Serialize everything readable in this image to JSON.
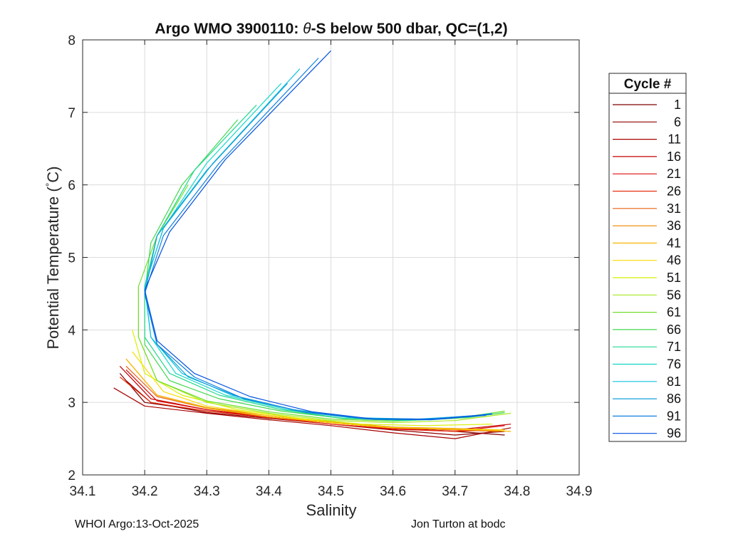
{
  "chart_data": {
    "type": "line",
    "title_prefix": "Argo WMO 3900110: ",
    "title_symbol": "θ",
    "title_suffix": "-S below 500 dbar,  QC=(1,2)",
    "xlabel": "Salinity",
    "ylabel_main": "Potential Temperature (",
    "ylabel_deg": "°",
    "ylabel_end": "C)",
    "xlim": [
      34.1,
      34.9
    ],
    "ylim": [
      2,
      8
    ],
    "xticks": [
      "34.1",
      "34.2",
      "34.3",
      "34.4",
      "34.5",
      "34.6",
      "34.7",
      "34.8",
      "34.9"
    ],
    "yticks": [
      "2",
      "3",
      "4",
      "5",
      "6",
      "7",
      "8"
    ],
    "grid": true,
    "legend": {
      "title": "Cycle #",
      "position": "right-outside",
      "entries": [
        {
          "label": "1",
          "color": "#800000"
        },
        {
          "label": "6",
          "color": "#8c0000"
        },
        {
          "label": "11",
          "color": "#a80000"
        },
        {
          "label": "16",
          "color": "#c40000"
        },
        {
          "label": "21",
          "color": "#dd0a0a"
        },
        {
          "label": "26",
          "color": "#e83010"
        },
        {
          "label": "31",
          "color": "#e86010"
        },
        {
          "label": "36",
          "color": "#f09010"
        },
        {
          "label": "41",
          "color": "#f8b800"
        },
        {
          "label": "46",
          "color": "#f8dc00"
        },
        {
          "label": "51",
          "color": "#d8f000"
        },
        {
          "label": "56",
          "color": "#a8e820"
        },
        {
          "label": "61",
          "color": "#70e030"
        },
        {
          "label": "66",
          "color": "#40d850"
        },
        {
          "label": "71",
          "color": "#20d890"
        },
        {
          "label": "76",
          "color": "#10d8c8"
        },
        {
          "label": "81",
          "color": "#10c0e0"
        },
        {
          "label": "86",
          "color": "#10a0d8"
        },
        {
          "label": "91",
          "color": "#1080e0"
        },
        {
          "label": "96",
          "color": "#0050e0"
        }
      ]
    },
    "series": [
      {
        "cycle": "1",
        "color": "#800000",
        "points": [
          [
            34.16,
            3.4
          ],
          [
            34.2,
            3.0
          ],
          [
            34.3,
            2.88
          ],
          [
            34.4,
            2.8
          ],
          [
            34.5,
            2.72
          ],
          [
            34.6,
            2.65
          ],
          [
            34.7,
            2.6
          ],
          [
            34.78,
            2.55
          ]
        ]
      },
      {
        "cycle": "6",
        "color": "#8c0000",
        "points": [
          [
            34.17,
            3.3
          ],
          [
            34.21,
            3.0
          ],
          [
            34.3,
            2.86
          ],
          [
            34.4,
            2.78
          ],
          [
            34.5,
            2.7
          ],
          [
            34.6,
            2.62
          ],
          [
            34.7,
            2.55
          ],
          [
            34.78,
            2.6
          ]
        ]
      },
      {
        "cycle": "11",
        "color": "#a80000",
        "points": [
          [
            34.15,
            3.2
          ],
          [
            34.2,
            2.95
          ],
          [
            34.3,
            2.85
          ],
          [
            34.4,
            2.76
          ],
          [
            34.5,
            2.68
          ],
          [
            34.6,
            2.58
          ],
          [
            34.7,
            2.5
          ],
          [
            34.79,
            2.65
          ]
        ]
      },
      {
        "cycle": "16",
        "color": "#c40000",
        "points": [
          [
            34.16,
            3.5
          ],
          [
            34.21,
            3.05
          ],
          [
            34.3,
            2.9
          ],
          [
            34.4,
            2.8
          ],
          [
            34.5,
            2.72
          ],
          [
            34.6,
            2.65
          ],
          [
            34.7,
            2.62
          ],
          [
            34.79,
            2.7
          ]
        ]
      },
      {
        "cycle": "21",
        "color": "#dd0a0a",
        "points": [
          [
            34.17,
            3.45
          ],
          [
            34.22,
            3.02
          ],
          [
            34.3,
            2.9
          ],
          [
            34.4,
            2.8
          ],
          [
            34.5,
            2.7
          ],
          [
            34.6,
            2.63
          ],
          [
            34.7,
            2.6
          ],
          [
            34.78,
            2.68
          ]
        ]
      },
      {
        "cycle": "26",
        "color": "#e83010",
        "points": [
          [
            34.16,
            3.35
          ],
          [
            34.21,
            3.0
          ],
          [
            34.3,
            2.88
          ],
          [
            34.4,
            2.79
          ],
          [
            34.5,
            2.7
          ],
          [
            34.6,
            2.64
          ],
          [
            34.7,
            2.6
          ],
          [
            34.77,
            2.62
          ]
        ]
      },
      {
        "cycle": "31",
        "color": "#e86010",
        "points": [
          [
            34.17,
            3.5
          ],
          [
            34.22,
            3.08
          ],
          [
            34.3,
            2.92
          ],
          [
            34.4,
            2.82
          ],
          [
            34.5,
            2.73
          ],
          [
            34.6,
            2.66
          ],
          [
            34.7,
            2.62
          ],
          [
            34.77,
            2.6
          ]
        ]
      },
      {
        "cycle": "36",
        "color": "#f09010",
        "points": [
          [
            34.17,
            3.6
          ],
          [
            34.22,
            3.1
          ],
          [
            34.3,
            2.93
          ],
          [
            34.4,
            2.82
          ],
          [
            34.5,
            2.73
          ],
          [
            34.6,
            2.66
          ],
          [
            34.7,
            2.64
          ],
          [
            34.78,
            2.62
          ]
        ]
      },
      {
        "cycle": "41",
        "color": "#f8b800",
        "points": [
          [
            34.17,
            3.6
          ],
          [
            34.22,
            3.1
          ],
          [
            34.3,
            2.92
          ],
          [
            34.4,
            2.8
          ],
          [
            34.5,
            2.72
          ],
          [
            34.6,
            2.65
          ],
          [
            34.7,
            2.63
          ],
          [
            34.79,
            2.6
          ]
        ]
      },
      {
        "cycle": "46",
        "color": "#f8dc00",
        "points": [
          [
            34.18,
            3.7
          ],
          [
            34.23,
            3.15
          ],
          [
            34.3,
            2.95
          ],
          [
            34.4,
            2.82
          ],
          [
            34.5,
            2.72
          ],
          [
            34.6,
            2.65
          ],
          [
            34.7,
            2.63
          ],
          [
            34.78,
            2.62
          ]
        ]
      },
      {
        "cycle": "51",
        "color": "#d8f000",
        "points": [
          [
            34.18,
            4.0
          ],
          [
            34.2,
            3.4
          ],
          [
            34.26,
            3.1
          ],
          [
            34.35,
            2.9
          ],
          [
            34.45,
            2.78
          ],
          [
            34.55,
            2.7
          ],
          [
            34.65,
            2.68
          ],
          [
            34.76,
            2.7
          ]
        ]
      },
      {
        "cycle": "56",
        "color": "#a8e820",
        "points": [
          [
            34.19,
            4.6
          ],
          [
            34.19,
            3.9
          ],
          [
            34.22,
            3.3
          ],
          [
            34.3,
            3.0
          ],
          [
            34.4,
            2.85
          ],
          [
            34.5,
            2.75
          ],
          [
            34.6,
            2.72
          ],
          [
            34.7,
            2.75
          ],
          [
            34.79,
            2.85
          ]
        ]
      },
      {
        "cycle": "61",
        "color": "#70e030",
        "points": [
          [
            34.27,
            6.0
          ],
          [
            34.22,
            5.3
          ],
          [
            34.19,
            4.6
          ],
          [
            34.19,
            3.9
          ],
          [
            34.22,
            3.3
          ],
          [
            34.3,
            3.02
          ],
          [
            34.4,
            2.87
          ],
          [
            34.5,
            2.77
          ],
          [
            34.6,
            2.74
          ],
          [
            34.7,
            2.78
          ],
          [
            34.78,
            2.88
          ]
        ]
      },
      {
        "cycle": "66",
        "color": "#40d850",
        "points": [
          [
            34.35,
            6.9
          ],
          [
            34.26,
            6.0
          ],
          [
            34.21,
            5.2
          ],
          [
            34.2,
            4.5
          ],
          [
            34.2,
            3.8
          ],
          [
            34.24,
            3.3
          ],
          [
            34.32,
            3.05
          ],
          [
            34.42,
            2.88
          ],
          [
            34.52,
            2.78
          ],
          [
            34.62,
            2.75
          ],
          [
            34.72,
            2.79
          ],
          [
            34.78,
            2.86
          ]
        ]
      },
      {
        "cycle": "71",
        "color": "#20d890",
        "points": [
          [
            34.38,
            7.1
          ],
          [
            34.28,
            6.2
          ],
          [
            34.22,
            5.3
          ],
          [
            34.2,
            4.6
          ],
          [
            34.2,
            3.9
          ],
          [
            34.24,
            3.4
          ],
          [
            34.32,
            3.1
          ],
          [
            34.42,
            2.9
          ],
          [
            34.52,
            2.78
          ],
          [
            34.62,
            2.75
          ],
          [
            34.72,
            2.8
          ],
          [
            34.76,
            2.84
          ]
        ]
      },
      {
        "cycle": "76",
        "color": "#10d8c8",
        "points": [
          [
            34.42,
            7.4
          ],
          [
            34.3,
            6.3
          ],
          [
            34.23,
            5.4
          ],
          [
            34.2,
            4.6
          ],
          [
            34.21,
            3.9
          ],
          [
            34.25,
            3.4
          ],
          [
            34.33,
            3.1
          ],
          [
            34.43,
            2.9
          ],
          [
            34.53,
            2.79
          ],
          [
            34.63,
            2.76
          ],
          [
            34.73,
            2.81
          ],
          [
            34.75,
            2.84
          ]
        ]
      },
      {
        "cycle": "81",
        "color": "#10c0e0",
        "points": [
          [
            34.45,
            7.6
          ],
          [
            34.31,
            6.3
          ],
          [
            34.23,
            5.4
          ],
          [
            34.2,
            4.6
          ],
          [
            34.21,
            3.9
          ],
          [
            34.26,
            3.4
          ],
          [
            34.34,
            3.1
          ],
          [
            34.44,
            2.9
          ],
          [
            34.54,
            2.79
          ],
          [
            34.64,
            2.77
          ],
          [
            34.74,
            2.82
          ],
          [
            34.76,
            2.85
          ]
        ]
      },
      {
        "cycle": "86",
        "color": "#10a0d8",
        "points": [
          [
            34.43,
            7.4
          ],
          [
            34.3,
            6.2
          ],
          [
            34.22,
            5.3
          ],
          [
            34.2,
            4.5
          ],
          [
            34.22,
            3.8
          ],
          [
            34.27,
            3.35
          ],
          [
            34.35,
            3.08
          ],
          [
            34.45,
            2.88
          ],
          [
            34.55,
            2.78
          ],
          [
            34.65,
            2.77
          ],
          [
            34.75,
            2.83
          ]
        ]
      },
      {
        "cycle": "91",
        "color": "#1080e0",
        "points": [
          [
            34.48,
            7.75
          ],
          [
            34.32,
            6.3
          ],
          [
            34.23,
            5.3
          ],
          [
            34.2,
            4.5
          ],
          [
            34.22,
            3.8
          ],
          [
            34.28,
            3.35
          ],
          [
            34.36,
            3.05
          ],
          [
            34.46,
            2.86
          ],
          [
            34.56,
            2.77
          ],
          [
            34.66,
            2.76
          ],
          [
            34.75,
            2.82
          ]
        ]
      },
      {
        "cycle": "96",
        "color": "#0050e0",
        "points": [
          [
            34.5,
            7.85
          ],
          [
            34.33,
            6.35
          ],
          [
            34.24,
            5.35
          ],
          [
            34.2,
            4.55
          ],
          [
            34.22,
            3.85
          ],
          [
            34.28,
            3.4
          ],
          [
            34.37,
            3.08
          ],
          [
            34.47,
            2.87
          ],
          [
            34.57,
            2.77
          ],
          [
            34.67,
            2.77
          ],
          [
            34.76,
            2.84
          ]
        ]
      }
    ]
  },
  "footer": {
    "left": "WHOI Argo:13-Oct-2025",
    "right": "Jon Turton at bodc"
  }
}
